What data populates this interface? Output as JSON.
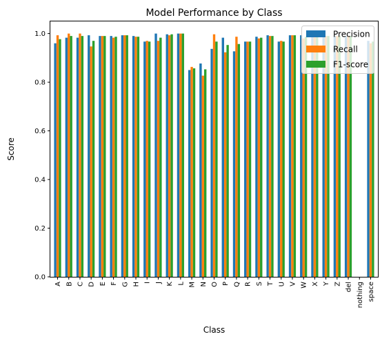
{
  "chart_data": {
    "type": "bar",
    "title": "Model Performance by Class",
    "xlabel": "Class",
    "ylabel": "Score",
    "ylim": [
      0,
      1.05
    ],
    "yticks": [
      0.0,
      0.2,
      0.4,
      0.6,
      0.8,
      1.0
    ],
    "grid": false,
    "legend_position": "top-right",
    "categories": [
      "A",
      "B",
      "C",
      "D",
      "E",
      "F",
      "G",
      "H",
      "I",
      "J",
      "K",
      "L",
      "M",
      "N",
      "O",
      "P",
      "Q",
      "R",
      "S",
      "T",
      "U",
      "V",
      "W",
      "X",
      "Y",
      "Z",
      "del",
      "nothing",
      "space"
    ],
    "series": [
      {
        "name": "Precision",
        "color": "#1f77b4",
        "values": [
          0.96,
          0.983,
          0.983,
          0.993,
          0.99,
          0.99,
          0.993,
          0.99,
          0.967,
          1.0,
          0.997,
          1.0,
          0.85,
          0.877,
          0.937,
          0.983,
          0.927,
          0.967,
          0.987,
          0.993,
          0.967,
          0.993,
          0.993,
          0.99,
          0.99,
          0.99,
          0.99,
          null,
          0.97
        ]
      },
      {
        "name": "Recall",
        "color": "#ff7f0e",
        "values": [
          0.993,
          1.0,
          1.0,
          0.947,
          0.99,
          0.983,
          0.993,
          0.987,
          0.97,
          0.97,
          0.993,
          1.0,
          0.863,
          0.827,
          0.997,
          0.923,
          0.987,
          0.967,
          0.98,
          0.99,
          0.97,
          0.993,
          0.98,
          0.99,
          0.99,
          0.99,
          0.99,
          null,
          0.96
        ]
      },
      {
        "name": "F1-score",
        "color": "#2ca02c",
        "values": [
          0.977,
          0.99,
          0.99,
          0.97,
          0.99,
          0.987,
          0.993,
          0.987,
          0.967,
          0.983,
          0.997,
          1.0,
          0.857,
          0.853,
          0.967,
          0.953,
          0.957,
          0.967,
          0.983,
          0.99,
          0.967,
          0.993,
          0.987,
          0.99,
          0.99,
          0.99,
          0.99,
          null,
          0.967
        ]
      }
    ]
  }
}
